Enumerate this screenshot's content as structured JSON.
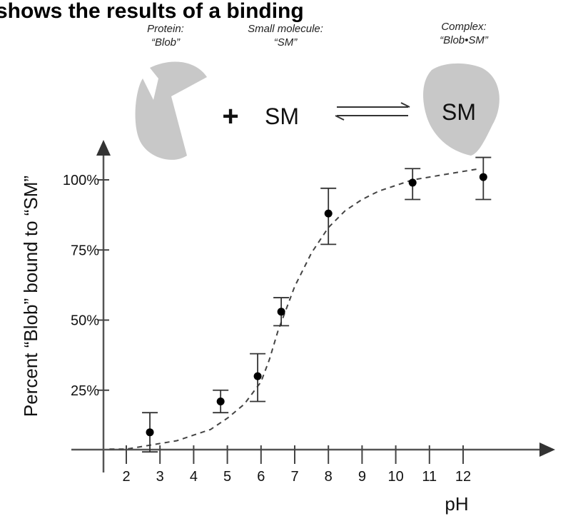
{
  "title": "shows the results of a binding",
  "diagram": {
    "protein_caption_line1": "Protein:",
    "protein_caption_line2": "“Blob”",
    "sm_caption_line1": "Small molecule:",
    "sm_caption_line2": "“SM”",
    "complex_caption_line1": "Complex:",
    "complex_caption_line2": "“Blob•SM”",
    "plus": "+",
    "sm_label": "SM",
    "complex_sm_label": "SM"
  },
  "colors": {
    "blob": "#c8c8c8",
    "axis": "#555555",
    "curve": "#444444",
    "points": "#000000"
  },
  "chart_data": {
    "type": "scatter",
    "xlabel": "pH",
    "ylabel": "Percent “Blob” bound to “SM”",
    "x_ticks": [
      2,
      3,
      4,
      5,
      6,
      7,
      8,
      9,
      10,
      11,
      12
    ],
    "y_ticks": [
      {
        "value": 25,
        "label": "25%"
      },
      {
        "value": 50,
        "label": "50%"
      },
      {
        "value": 75,
        "label": "75%"
      },
      {
        "value": 100,
        "label": "100%"
      }
    ],
    "xlim": [
      1.3,
      14
    ],
    "ylim": [
      -5,
      110
    ],
    "series": [
      {
        "points": [
          {
            "x": 2.7,
            "y": 10,
            "err_low": 7,
            "err_high": 7
          },
          {
            "x": 4.8,
            "y": 21,
            "err_low": 4,
            "err_high": 4
          },
          {
            "x": 5.9,
            "y": 30,
            "err_low": 9,
            "err_high": 8
          },
          {
            "x": 6.6,
            "y": 53,
            "err_low": 5,
            "err_high": 5
          },
          {
            "x": 8.0,
            "y": 88,
            "err_low": 11,
            "err_high": 9
          },
          {
            "x": 10.5,
            "y": 99,
            "err_low": 6,
            "err_high": 5
          },
          {
            "x": 12.6,
            "y": 101,
            "err_low": 8,
            "err_high": 7
          }
        ]
      }
    ],
    "fit_curve": {
      "style": "dashed",
      "x": [
        1.5,
        2,
        2.5,
        3,
        3.5,
        4,
        4.5,
        5,
        5.5,
        6,
        6.25,
        6.5,
        6.75,
        7,
        7.5,
        8,
        8.5,
        9,
        9.5,
        10,
        10.5,
        11,
        11.5,
        12,
        12.5
      ],
      "y": [
        4,
        4,
        5,
        6,
        7,
        9,
        11,
        15,
        20,
        28,
        36,
        46,
        54,
        62,
        74,
        83,
        89,
        93,
        96,
        98,
        100,
        101,
        102,
        103,
        104
      ]
    }
  }
}
